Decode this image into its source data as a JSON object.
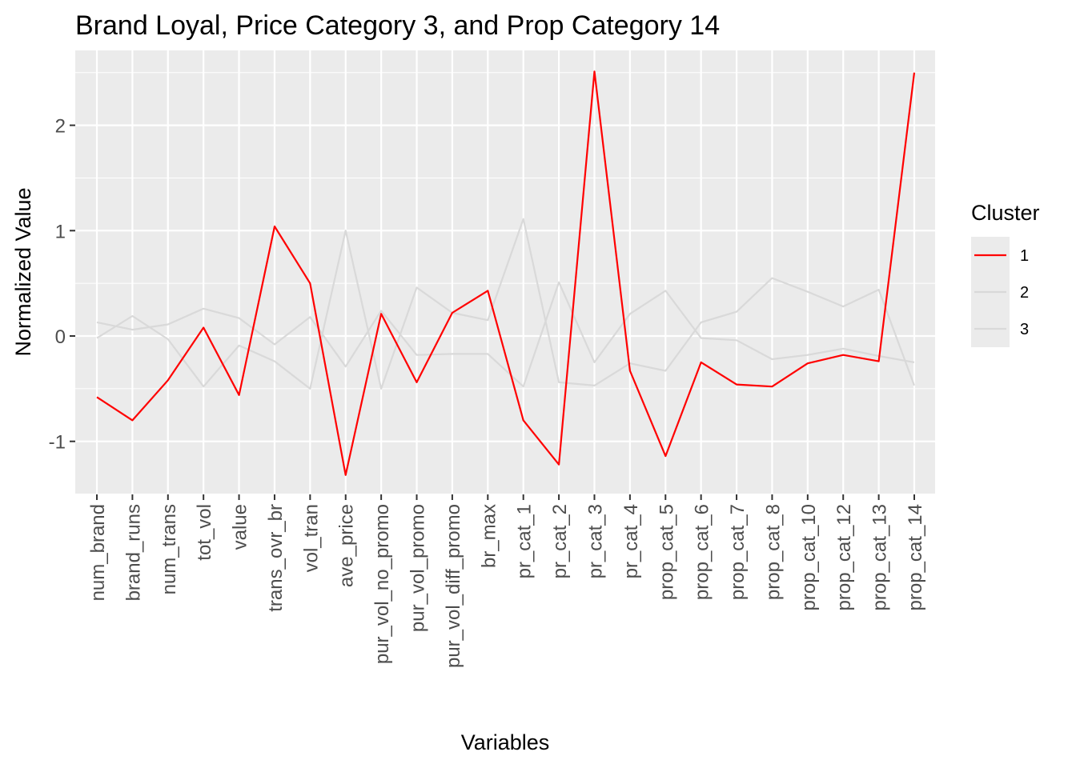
{
  "chart_data": {
    "type": "line",
    "title": "Brand Loyal, Price Category 3, and Prop Category 14",
    "xlabel": "Variables",
    "ylabel": "Normalized Value",
    "categories": [
      "num_brand",
      "brand_runs",
      "num_trans",
      "tot_vol",
      "value",
      "trans_ovr_br",
      "vol_tran",
      "ave_price",
      "pur_vol_no_promo",
      "pur_vol_promo",
      "pur_vol_diff_promo",
      "br_max",
      "pr_cat_1",
      "pr_cat_2",
      "pr_cat_3",
      "pr_cat_4",
      "prop_cat_5",
      "prop_cat_6",
      "prop_cat_7",
      "prop_cat_8",
      "prop_cat_10",
      "prop_cat_12",
      "prop_cat_13",
      "prop_cat_14"
    ],
    "ylim": [
      -1.5,
      2.65
    ],
    "yticks": [
      -1,
      0,
      1,
      2
    ],
    "ytick_labels": [
      "-1",
      "0",
      "1",
      "2"
    ],
    "grid": true,
    "legend": {
      "title": "Cluster",
      "position": "right",
      "entries": [
        "1",
        "2",
        "3"
      ]
    },
    "series": [
      {
        "name": "2",
        "color": "#d9d9d9",
        "values": [
          0.13,
          0.06,
          0.11,
          0.26,
          0.17,
          -0.08,
          0.18,
          -0.29,
          0.24,
          -0.18,
          -0.17,
          -0.17,
          -0.48,
          0.51,
          -0.25,
          0.21,
          0.43,
          -0.02,
          -0.04,
          -0.22,
          -0.18,
          -0.12,
          -0.19,
          -0.25
        ]
      },
      {
        "name": "3",
        "color": "#d9d9d9",
        "values": [
          -0.02,
          0.19,
          -0.03,
          -0.48,
          -0.09,
          -0.24,
          -0.5,
          1.0,
          -0.5,
          0.46,
          0.22,
          0.15,
          1.11,
          -0.44,
          -0.47,
          -0.26,
          -0.33,
          0.13,
          0.23,
          0.55,
          0.42,
          0.28,
          0.44,
          -0.47
        ]
      },
      {
        "name": "1",
        "color": "#ff0000",
        "values": [
          -0.58,
          -0.8,
          -0.42,
          0.08,
          -0.56,
          1.04,
          0.5,
          -1.32,
          0.21,
          -0.44,
          0.22,
          0.43,
          -0.8,
          -1.22,
          2.51,
          -0.33,
          -1.14,
          -0.25,
          -0.46,
          -0.48,
          -0.26,
          -0.18,
          -0.24,
          2.5
        ]
      }
    ]
  }
}
